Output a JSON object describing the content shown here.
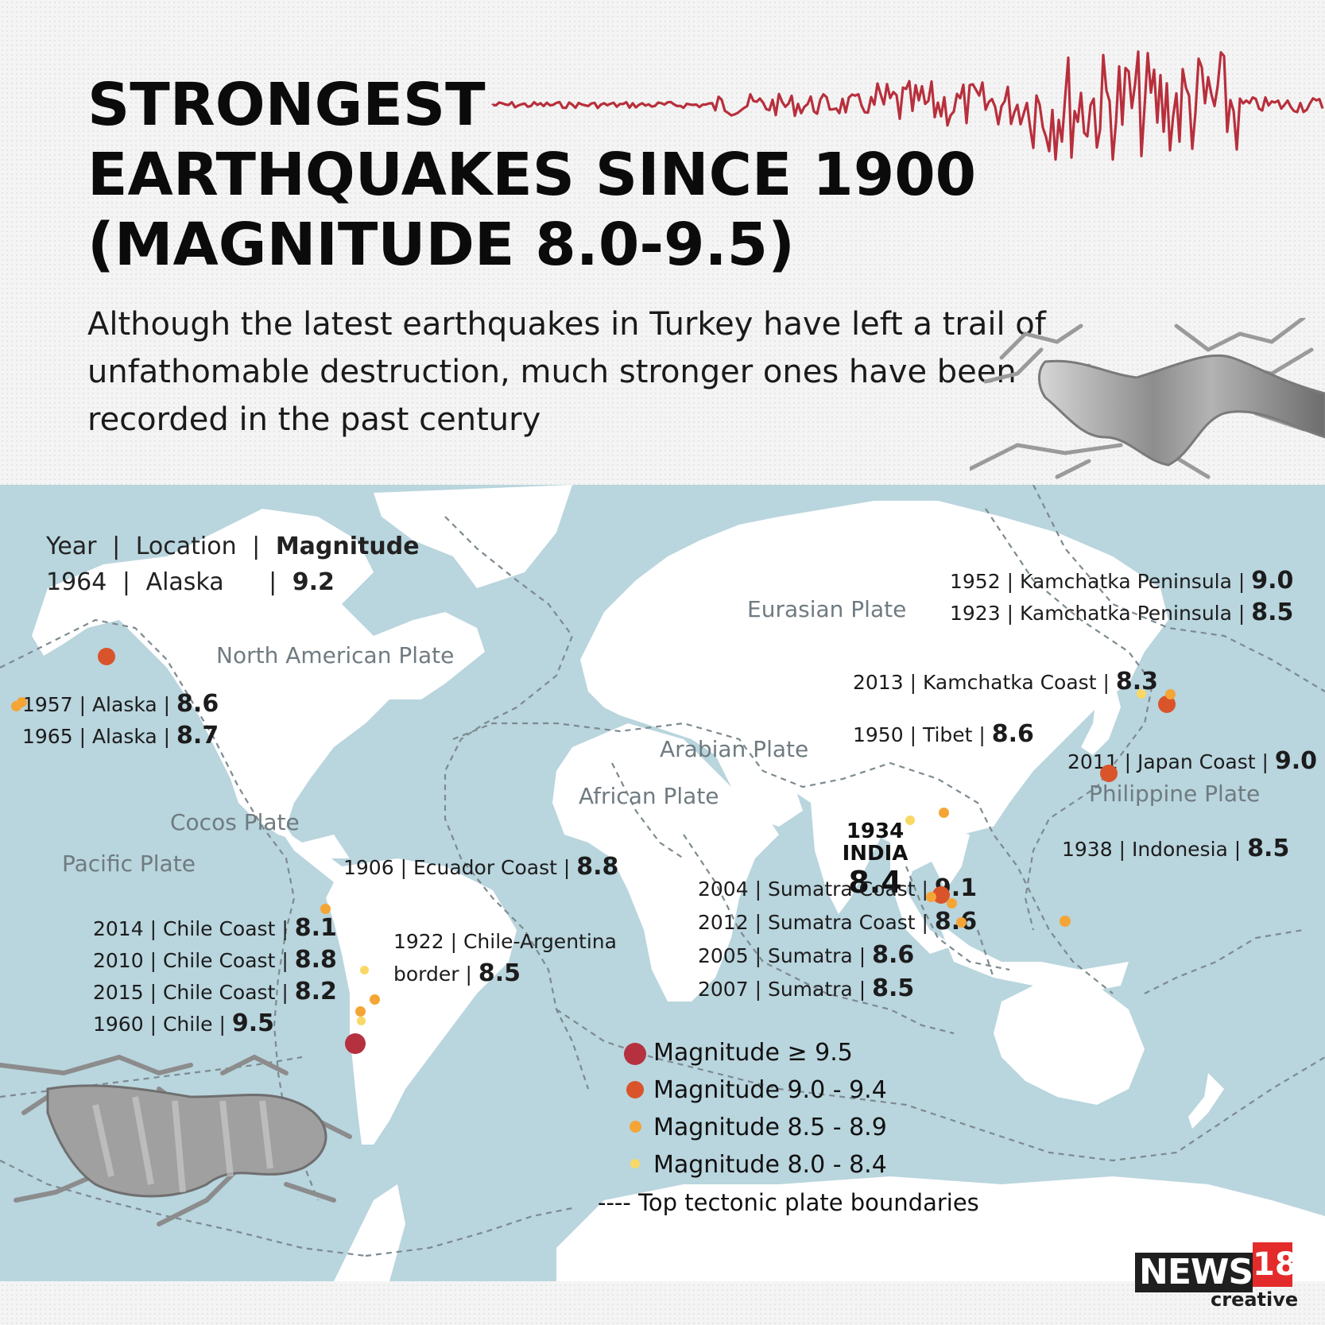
{
  "header": {
    "title_lines": [
      "STRONGEST",
      "EARTHQUAKES SINCE 1900",
      "(MAGNITUDE 8.0-9.5)"
    ],
    "subtitle": "Although the latest earthquakes in Turkey have left a trail of unfathomable destruction, much stronger ones have been recorded in the past century"
  },
  "map": {
    "key_header": {
      "year": "Year",
      "sep1": "|",
      "location": "Location",
      "sep2": "|",
      "magnitude": "Magnitude"
    },
    "key_example": {
      "year": "1964",
      "sep1": "|",
      "location": "Alaska",
      "sep2": "|",
      "magnitude": "9.2"
    },
    "plates": [
      "North American Plate",
      "Eurasian Plate",
      "Arabian Plate",
      "African Plate",
      "Cocos Plate",
      "Pacific Plate",
      "Philippine Plate"
    ],
    "earthquakes": [
      {
        "year": "1964",
        "location": "Alaska",
        "magnitude": "9.2",
        "category": "9.0 - 9.4"
      },
      {
        "year": "1957",
        "location": "Alaska",
        "magnitude": "8.6",
        "category": "8.5 - 8.9"
      },
      {
        "year": "1965",
        "location": "Alaska",
        "magnitude": "8.7",
        "category": "8.5 - 8.9"
      },
      {
        "year": "1952",
        "location": "Kamchatka Peninsula",
        "magnitude": "9.0",
        "category": "9.0 - 9.4"
      },
      {
        "year": "1923",
        "location": "Kamchatka Peninsula",
        "magnitude": "8.5",
        "category": "8.5 - 8.9"
      },
      {
        "year": "2013",
        "location": "Kamchatka Coast",
        "magnitude": "8.3",
        "category": "8.0 - 8.4"
      },
      {
        "year": "1950",
        "location": "Tibet",
        "magnitude": "8.6",
        "category": "8.5 - 8.9"
      },
      {
        "year": "2011",
        "location": "Japan Coast",
        "magnitude": "9.0",
        "category": "9.0 - 9.4"
      },
      {
        "year": "1934",
        "location": "INDIA",
        "magnitude": "8.4",
        "category": "8.0 - 8.4"
      },
      {
        "year": "1938",
        "location": "Indonesia",
        "magnitude": "8.5",
        "category": "8.5 - 8.9"
      },
      {
        "year": "1906",
        "location": "Ecuador Coast",
        "magnitude": "8.8",
        "category": "8.5 - 8.9"
      },
      {
        "year": "2004",
        "location": "Sumatra Coast",
        "magnitude": "9.1",
        "category": "9.0 - 9.4"
      },
      {
        "year": "2012",
        "location": "Sumatra Coast",
        "magnitude": "8.6",
        "category": "8.5 - 8.9"
      },
      {
        "year": "2005",
        "location": "Sumatra",
        "magnitude": "8.6",
        "category": "8.5 - 8.9"
      },
      {
        "year": "2007",
        "location": "Sumatra",
        "magnitude": "8.5",
        "category": "8.5 - 8.9"
      },
      {
        "year": "2014",
        "location": "Chile Coast",
        "magnitude": "8.1",
        "category": "8.0 - 8.4"
      },
      {
        "year": "2010",
        "location": "Chile Coast",
        "magnitude": "8.8",
        "category": "8.5 - 8.9"
      },
      {
        "year": "2015",
        "location": "Chile Coast",
        "magnitude": "8.2",
        "category": "8.0 - 8.4"
      },
      {
        "year": "1960",
        "location": "Chile",
        "magnitude": "9.5",
        "category": "≥ 9.5"
      },
      {
        "year": "1922",
        "location": "Chile-Argentina border",
        "magnitude": "8.5",
        "category": "8.5 - 8.9"
      }
    ],
    "legend": [
      {
        "label": "Magnitude ≥ 9.5",
        "color": "#b5313f"
      },
      {
        "label": "Magnitude 9.0 - 9.4",
        "color": "#d9542b"
      },
      {
        "label": "Magnitude 8.5 - 8.9",
        "color": "#f4a535"
      },
      {
        "label": "Magnitude 8.0 - 8.4",
        "color": "#f9d865"
      }
    ],
    "boundary_legend": "---- Top tectonic plate boundaries"
  },
  "logo": {
    "text": "NEWS",
    "number": "18",
    "sub": "creative"
  },
  "colors": {
    "ocean": "#b9d5de",
    "land": "#ffffff",
    "seismograph": "#b82f3c",
    "boundary": "#7d8a90"
  }
}
